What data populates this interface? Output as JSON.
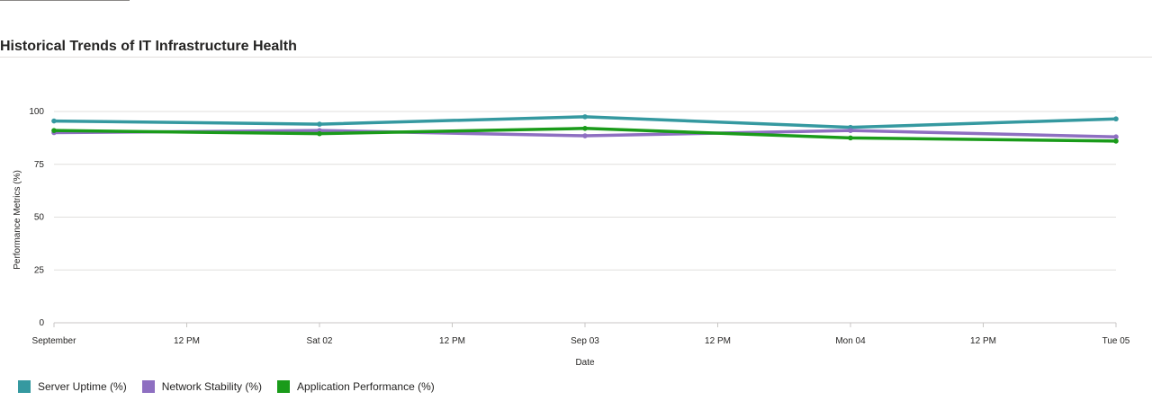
{
  "title": "Historical Trends of IT Infrastructure Health",
  "colors": {
    "server_uptime": "#3599a0",
    "network_stability": "#8e6fc1",
    "application_performance": "#1a9b1a"
  },
  "legend": [
    {
      "label": "Server Uptime (%)",
      "color_key": "server_uptime"
    },
    {
      "label": "Network Stability (%)",
      "color_key": "network_stability"
    },
    {
      "label": "Application Performance (%)",
      "color_key": "application_performance"
    }
  ],
  "chart_data": {
    "type": "line",
    "xlabel": "Date",
    "ylabel": "Performance Metrics (%)",
    "x": [
      "2024-09-01",
      "2024-09-02",
      "2024-09-03",
      "2024-09-04",
      "2024-09-05"
    ],
    "x_tick_labels": [
      "September",
      "12 PM",
      "Sat 02",
      "12 PM",
      "Sep 03",
      "12 PM",
      "Mon 04",
      "12 PM",
      "Tue 05"
    ],
    "ylim": [
      0,
      100
    ],
    "y_ticks": [
      0,
      25,
      50,
      75,
      100
    ],
    "grid": true,
    "legend_position": "bottom-left",
    "series": [
      {
        "name": "Server Uptime (%)",
        "color_key": "server_uptime",
        "values": [
          95.5,
          94,
          97.5,
          92.5,
          96.5
        ]
      },
      {
        "name": "Network Stability (%)",
        "color_key": "network_stability",
        "values": [
          90,
          91,
          88.5,
          91,
          88
        ]
      },
      {
        "name": "Application Performance (%)",
        "color_key": "application_performance",
        "values": [
          91,
          89.5,
          92,
          87.5,
          86
        ]
      }
    ]
  }
}
